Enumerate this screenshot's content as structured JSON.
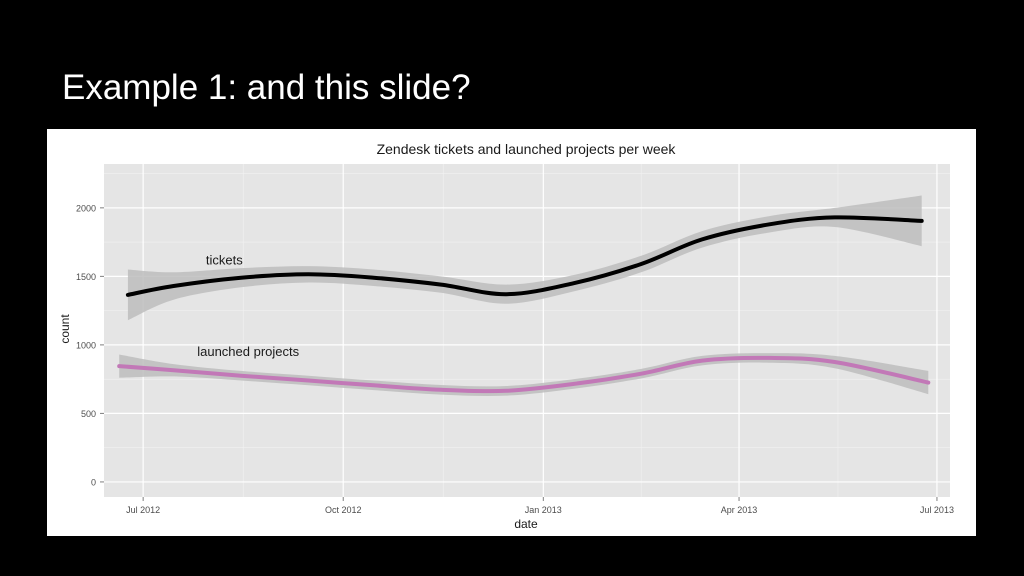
{
  "slide": {
    "title": "Example 1: and this slide?"
  },
  "chart_data": {
    "type": "line",
    "title": "Zendesk tickets and launched projects per week",
    "xlabel": "date",
    "ylabel": "count",
    "x_ticks": [
      "Jul 2012",
      "Oct 2012",
      "Jan 2013",
      "Apr 2013",
      "Jul 2013"
    ],
    "x_tick_dates": [
      "2012-07-01",
      "2012-10-01",
      "2013-01-01",
      "2013-04-01",
      "2013-07-01"
    ],
    "xlim": [
      "2012-06-13",
      "2013-07-07"
    ],
    "y_ticks": [
      0,
      500,
      1000,
      1500,
      2000
    ],
    "ylim": [
      -110,
      2320
    ],
    "grid": true,
    "legend": "none",
    "background": "#e5e5e5",
    "series": [
      {
        "name": "tickets",
        "color": "#000000",
        "band_color": "#bdbdbd",
        "points": [
          {
            "x": "2012-06-24",
            "y": 1365,
            "lo": 1180,
            "hi": 1550
          },
          {
            "x": "2012-07-15",
            "y": 1430,
            "lo": 1330,
            "hi": 1530
          },
          {
            "x": "2012-08-15",
            "y": 1490,
            "lo": 1420,
            "hi": 1560
          },
          {
            "x": "2012-09-15",
            "y": 1515,
            "lo": 1455,
            "hi": 1575
          },
          {
            "x": "2012-10-15",
            "y": 1490,
            "lo": 1430,
            "hi": 1550
          },
          {
            "x": "2012-11-15",
            "y": 1440,
            "lo": 1380,
            "hi": 1500
          },
          {
            "x": "2012-12-15",
            "y": 1370,
            "lo": 1300,
            "hi": 1440
          },
          {
            "x": "2013-01-15",
            "y": 1450,
            "lo": 1390,
            "hi": 1510
          },
          {
            "x": "2013-02-15",
            "y": 1590,
            "lo": 1530,
            "hi": 1650
          },
          {
            "x": "2013-03-15",
            "y": 1770,
            "lo": 1710,
            "hi": 1830
          },
          {
            "x": "2013-04-15",
            "y": 1880,
            "lo": 1820,
            "hi": 1940
          },
          {
            "x": "2013-05-15",
            "y": 1930,
            "lo": 1860,
            "hi": 2000
          },
          {
            "x": "2013-06-24",
            "y": 1905,
            "lo": 1720,
            "hi": 2090
          }
        ]
      },
      {
        "name": "launched projects",
        "color": "#c278b7",
        "band_color": "#bdbdbd",
        "points": [
          {
            "x": "2012-06-20",
            "y": 845,
            "lo": 760,
            "hi": 930
          },
          {
            "x": "2012-07-15",
            "y": 815,
            "lo": 770,
            "hi": 860
          },
          {
            "x": "2012-08-15",
            "y": 775,
            "lo": 740,
            "hi": 810
          },
          {
            "x": "2012-09-15",
            "y": 740,
            "lo": 705,
            "hi": 775
          },
          {
            "x": "2012-10-15",
            "y": 705,
            "lo": 670,
            "hi": 740
          },
          {
            "x": "2012-11-15",
            "y": 672,
            "lo": 637,
            "hi": 707
          },
          {
            "x": "2012-12-15",
            "y": 665,
            "lo": 630,
            "hi": 700
          },
          {
            "x": "2013-01-15",
            "y": 715,
            "lo": 680,
            "hi": 750
          },
          {
            "x": "2013-02-15",
            "y": 790,
            "lo": 755,
            "hi": 825
          },
          {
            "x": "2013-03-15",
            "y": 885,
            "lo": 850,
            "hi": 920
          },
          {
            "x": "2013-04-15",
            "y": 905,
            "lo": 870,
            "hi": 940
          },
          {
            "x": "2013-05-15",
            "y": 875,
            "lo": 830,
            "hi": 920
          },
          {
            "x": "2013-06-27",
            "y": 725,
            "lo": 640,
            "hi": 810
          }
        ]
      }
    ]
  }
}
